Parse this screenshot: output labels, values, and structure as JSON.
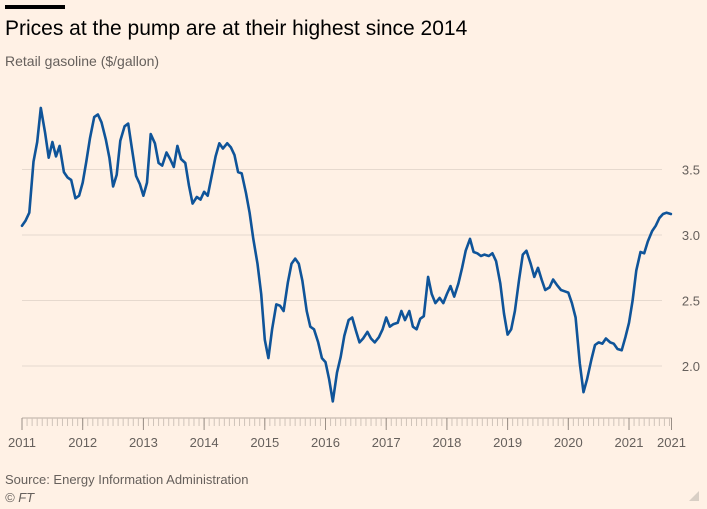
{
  "header": {
    "title": "Prices at the pump are at their highest since 2014",
    "subtitle": "Retail gasoline ($/gallon)"
  },
  "footer": {
    "source": "Source: Energy Information Administration",
    "copyright": "© FT"
  },
  "colors": {
    "background": "#fff1e5",
    "line": "#0f5499",
    "grid": "#e6d9ce",
    "axis_text": "#66605c"
  },
  "chart_data": {
    "type": "line",
    "title": "Prices at the pump are at their highest since 2014",
    "subtitle": "Retail gasoline ($/gallon)",
    "xlabel": "",
    "ylabel": "",
    "x_ticks": [
      "2011",
      "2012",
      "2013",
      "2014",
      "2015",
      "2016",
      "2017",
      "2018",
      "2019",
      "2020",
      "2021",
      "2021"
    ],
    "x_tick_values": [
      2011,
      2012,
      2013,
      2014,
      2015,
      2016,
      2017,
      2018,
      2019,
      2020,
      2021,
      2021.7
    ],
    "y_ticks": [
      "2.0",
      "2.5",
      "3.0",
      "3.5"
    ],
    "y_tick_values": [
      2.0,
      2.5,
      3.0,
      3.5
    ],
    "xlim": [
      2011.0,
      2021.8
    ],
    "ylim": [
      1.6,
      4.1
    ],
    "grid": true,
    "y_axis_position": "right",
    "series": [
      {
        "color": "#0f5499",
        "points": [
          [
            2011.0,
            3.07
          ],
          [
            2011.06,
            3.11
          ],
          [
            2011.12,
            3.17
          ],
          [
            2011.19,
            3.56
          ],
          [
            2011.25,
            3.71
          ],
          [
            2011.31,
            3.97
          ],
          [
            2011.38,
            3.78
          ],
          [
            2011.44,
            3.59
          ],
          [
            2011.5,
            3.71
          ],
          [
            2011.56,
            3.6
          ],
          [
            2011.62,
            3.68
          ],
          [
            2011.69,
            3.48
          ],
          [
            2011.75,
            3.44
          ],
          [
            2011.81,
            3.42
          ],
          [
            2011.88,
            3.28
          ],
          [
            2011.94,
            3.3
          ],
          [
            2012.0,
            3.4
          ],
          [
            2012.06,
            3.56
          ],
          [
            2012.12,
            3.74
          ],
          [
            2012.19,
            3.9
          ],
          [
            2012.25,
            3.92
          ],
          [
            2012.31,
            3.86
          ],
          [
            2012.38,
            3.73
          ],
          [
            2012.44,
            3.59
          ],
          [
            2012.5,
            3.37
          ],
          [
            2012.56,
            3.46
          ],
          [
            2012.62,
            3.72
          ],
          [
            2012.69,
            3.83
          ],
          [
            2012.75,
            3.85
          ],
          [
            2012.81,
            3.66
          ],
          [
            2012.88,
            3.45
          ],
          [
            2012.94,
            3.39
          ],
          [
            2013.0,
            3.3
          ],
          [
            2013.06,
            3.4
          ],
          [
            2013.12,
            3.77
          ],
          [
            2013.19,
            3.7
          ],
          [
            2013.25,
            3.55
          ],
          [
            2013.31,
            3.53
          ],
          [
            2013.38,
            3.63
          ],
          [
            2013.44,
            3.58
          ],
          [
            2013.5,
            3.52
          ],
          [
            2013.56,
            3.68
          ],
          [
            2013.62,
            3.58
          ],
          [
            2013.69,
            3.55
          ],
          [
            2013.75,
            3.38
          ],
          [
            2013.81,
            3.24
          ],
          [
            2013.88,
            3.29
          ],
          [
            2013.94,
            3.27
          ],
          [
            2014.0,
            3.33
          ],
          [
            2014.06,
            3.3
          ],
          [
            2014.12,
            3.44
          ],
          [
            2014.19,
            3.6
          ],
          [
            2014.25,
            3.7
          ],
          [
            2014.31,
            3.66
          ],
          [
            2014.38,
            3.7
          ],
          [
            2014.44,
            3.67
          ],
          [
            2014.5,
            3.61
          ],
          [
            2014.56,
            3.48
          ],
          [
            2014.62,
            3.47
          ],
          [
            2014.69,
            3.32
          ],
          [
            2014.75,
            3.17
          ],
          [
            2014.81,
            2.97
          ],
          [
            2014.88,
            2.78
          ],
          [
            2014.94,
            2.55
          ],
          [
            2015.0,
            2.2
          ],
          [
            2015.06,
            2.06
          ],
          [
            2015.12,
            2.28
          ],
          [
            2015.19,
            2.47
          ],
          [
            2015.25,
            2.46
          ],
          [
            2015.31,
            2.42
          ],
          [
            2015.38,
            2.64
          ],
          [
            2015.44,
            2.78
          ],
          [
            2015.5,
            2.82
          ],
          [
            2015.56,
            2.78
          ],
          [
            2015.62,
            2.65
          ],
          [
            2015.69,
            2.42
          ],
          [
            2015.75,
            2.3
          ],
          [
            2015.81,
            2.28
          ],
          [
            2015.88,
            2.18
          ],
          [
            2015.94,
            2.06
          ],
          [
            2016.0,
            2.03
          ],
          [
            2016.06,
            1.9
          ],
          [
            2016.12,
            1.73
          ],
          [
            2016.19,
            1.95
          ],
          [
            2016.25,
            2.07
          ],
          [
            2016.31,
            2.23
          ],
          [
            2016.38,
            2.35
          ],
          [
            2016.44,
            2.37
          ],
          [
            2016.5,
            2.27
          ],
          [
            2016.56,
            2.18
          ],
          [
            2016.62,
            2.21
          ],
          [
            2016.69,
            2.26
          ],
          [
            2016.75,
            2.21
          ],
          [
            2016.81,
            2.18
          ],
          [
            2016.88,
            2.22
          ],
          [
            2016.94,
            2.28
          ],
          [
            2017.0,
            2.37
          ],
          [
            2017.06,
            2.3
          ],
          [
            2017.12,
            2.32
          ],
          [
            2017.19,
            2.33
          ],
          [
            2017.25,
            2.42
          ],
          [
            2017.31,
            2.35
          ],
          [
            2017.38,
            2.42
          ],
          [
            2017.44,
            2.3
          ],
          [
            2017.5,
            2.28
          ],
          [
            2017.56,
            2.36
          ],
          [
            2017.62,
            2.38
          ],
          [
            2017.69,
            2.68
          ],
          [
            2017.75,
            2.55
          ],
          [
            2017.81,
            2.48
          ],
          [
            2017.88,
            2.52
          ],
          [
            2017.94,
            2.48
          ],
          [
            2018.0,
            2.55
          ],
          [
            2018.06,
            2.61
          ],
          [
            2018.12,
            2.53
          ],
          [
            2018.19,
            2.63
          ],
          [
            2018.25,
            2.75
          ],
          [
            2018.31,
            2.88
          ],
          [
            2018.38,
            2.97
          ],
          [
            2018.44,
            2.87
          ],
          [
            2018.5,
            2.86
          ],
          [
            2018.56,
            2.84
          ],
          [
            2018.62,
            2.85
          ],
          [
            2018.69,
            2.84
          ],
          [
            2018.75,
            2.86
          ],
          [
            2018.81,
            2.8
          ],
          [
            2018.88,
            2.63
          ],
          [
            2018.94,
            2.4
          ],
          [
            2019.0,
            2.24
          ],
          [
            2019.06,
            2.28
          ],
          [
            2019.12,
            2.42
          ],
          [
            2019.19,
            2.66
          ],
          [
            2019.25,
            2.85
          ],
          [
            2019.31,
            2.88
          ],
          [
            2019.38,
            2.78
          ],
          [
            2019.44,
            2.68
          ],
          [
            2019.5,
            2.75
          ],
          [
            2019.56,
            2.66
          ],
          [
            2019.62,
            2.58
          ],
          [
            2019.69,
            2.6
          ],
          [
            2019.75,
            2.66
          ],
          [
            2019.81,
            2.62
          ],
          [
            2019.88,
            2.58
          ],
          [
            2019.94,
            2.57
          ],
          [
            2020.0,
            2.56
          ],
          [
            2020.06,
            2.48
          ],
          [
            2020.12,
            2.37
          ],
          [
            2020.19,
            2.02
          ],
          [
            2020.25,
            1.8
          ],
          [
            2020.31,
            1.9
          ],
          [
            2020.38,
            2.05
          ],
          [
            2020.44,
            2.16
          ],
          [
            2020.5,
            2.18
          ],
          [
            2020.56,
            2.17
          ],
          [
            2020.62,
            2.21
          ],
          [
            2020.69,
            2.18
          ],
          [
            2020.75,
            2.17
          ],
          [
            2020.81,
            2.13
          ],
          [
            2020.88,
            2.12
          ],
          [
            2020.94,
            2.22
          ],
          [
            2021.0,
            2.33
          ],
          [
            2021.06,
            2.5
          ],
          [
            2021.12,
            2.73
          ],
          [
            2021.19,
            2.87
          ],
          [
            2021.25,
            2.86
          ],
          [
            2021.31,
            2.95
          ],
          [
            2021.38,
            3.03
          ],
          [
            2021.44,
            3.07
          ],
          [
            2021.5,
            3.13
          ],
          [
            2021.56,
            3.16
          ],
          [
            2021.62,
            3.17
          ],
          [
            2021.69,
            3.16
          ]
        ]
      }
    ]
  }
}
